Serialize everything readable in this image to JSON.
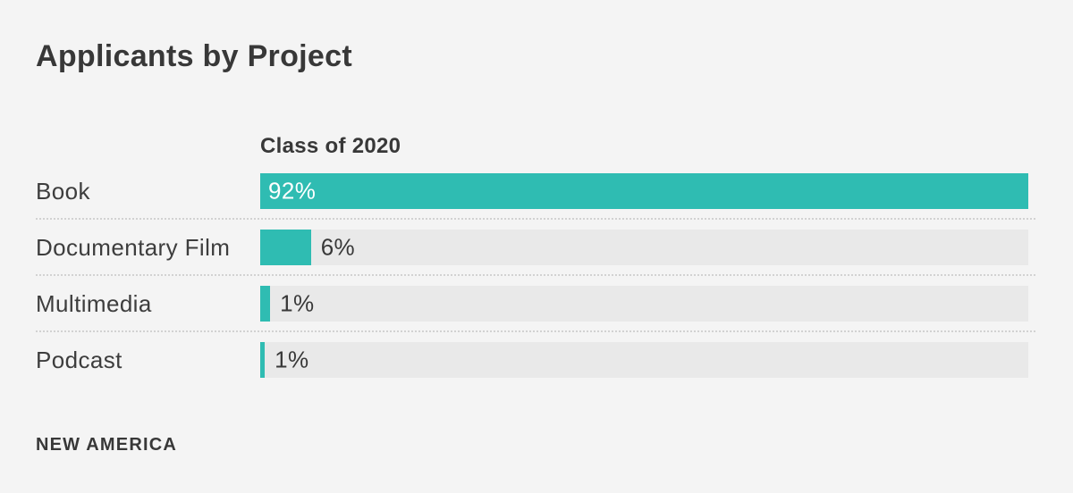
{
  "page": {
    "background_color": "#f4f4f4"
  },
  "chart": {
    "title": "Applicants by Project",
    "column_header": "Class of 2020"
  },
  "chart_data": {
    "type": "bar",
    "orientation": "horizontal",
    "title": "Applicants by Project",
    "column_header": "Class of 2020",
    "categories": [
      "Book",
      "Documentary Film",
      "Multimedia",
      "Podcast"
    ],
    "values": [
      92,
      6,
      1,
      1
    ],
    "value_labels": [
      "92%",
      "6%",
      "1%",
      "1%"
    ],
    "xlim": [
      0,
      92
    ],
    "grid": false,
    "legend_position": "none",
    "bar_color": "#2fbcb2",
    "track_color": "#e9e9e9",
    "display_width_pct": [
      100,
      6.6,
      1.3,
      0.6
    ],
    "value_label_inside": [
      true,
      false,
      false,
      false
    ]
  },
  "footer": {
    "brand": "NEW AMERICA"
  }
}
